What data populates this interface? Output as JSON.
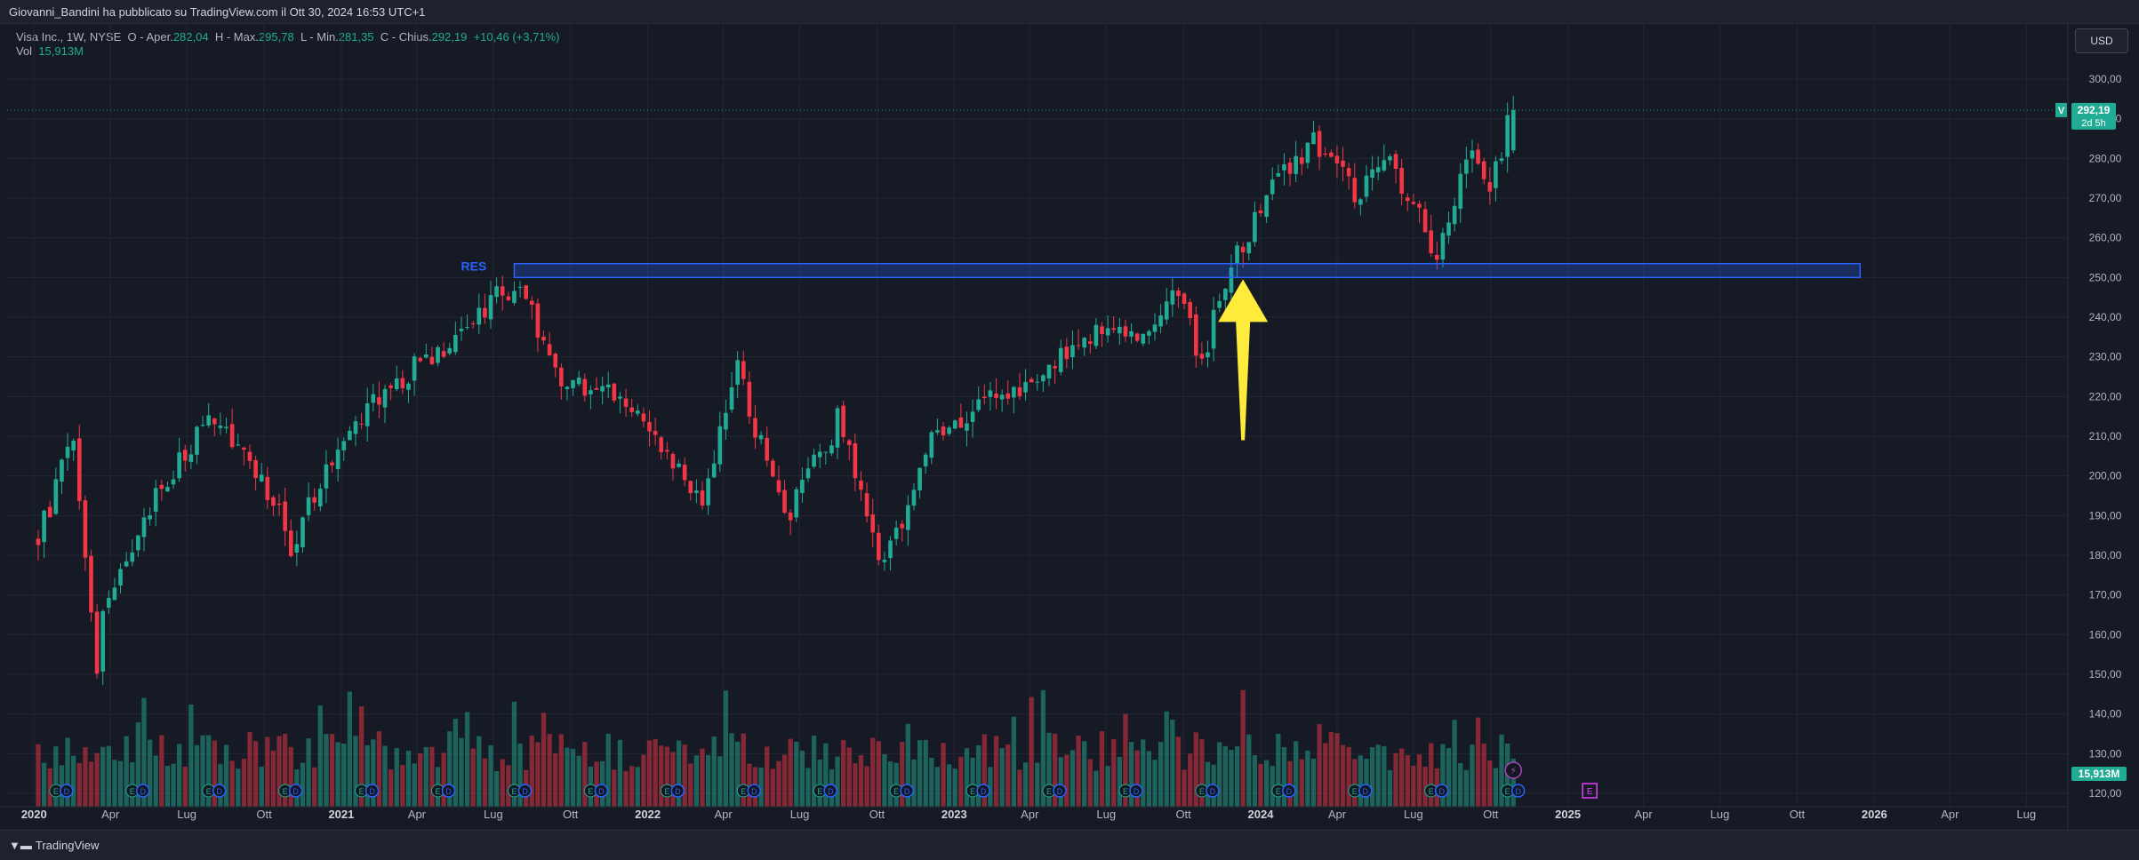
{
  "header": {
    "publisher_text": "Giovanni_Bandini ha pubblicato su TradingView.com il Ott 30, 2024 16:53 UTC+1"
  },
  "legend": {
    "symbol": "Visa Inc., 1W, NYSE",
    "open_label": "O - Aper.",
    "open_value": "282,04",
    "high_label": "H - Max.",
    "high_value": "295,78",
    "low_label": "L - Min.",
    "low_value": "281,35",
    "close_label": "C - Chius.",
    "close_value": "292,19",
    "change_value": "+10,46 (+3,71%)",
    "vol_label": "Vol",
    "vol_value": "15,913M"
  },
  "currency_button": "USD",
  "price_tag": {
    "symbol_letter": "V",
    "price": "292,19",
    "countdown": "2d 5h"
  },
  "volume_tag": "15,913M",
  "footer": {
    "logo_text": "TradingView"
  },
  "colors": {
    "up": "#22ab94",
    "down": "#f23645",
    "zone_border": "#2962ff",
    "arrow": "#ffeb3b",
    "label": "#2962ff",
    "earnings": "#2962ff"
  },
  "chart_data": {
    "type": "candlestick",
    "timeframe": "1W",
    "ylim": [
      115,
      310
    ],
    "y_ticks": [
      "120,00",
      "130,00",
      "140,00",
      "150,00",
      "160,00",
      "170,00",
      "180,00",
      "190,00",
      "200,00",
      "210,00",
      "220,00",
      "230,00",
      "240,00",
      "250,00",
      "260,00",
      "270,00",
      "280,00",
      "290,00",
      "300,00"
    ],
    "x_ticks": [
      "2020",
      "Apr",
      "Lug",
      "Ott",
      "2021",
      "Apr",
      "Lug",
      "Ott",
      "2022",
      "Apr",
      "Lug",
      "Ott",
      "2023",
      "Apr",
      "Lug",
      "Ott",
      "2024",
      "Apr",
      "Lug",
      "Ott",
      "2025",
      "Apr",
      "Lug",
      "Ott",
      "2026",
      "Apr",
      "Lug"
    ],
    "weekly_close_keypoints": [
      [
        "2020-01-06",
        184
      ],
      [
        "2020-02-17",
        210
      ],
      [
        "2020-03-16",
        150
      ],
      [
        "2020-03-23",
        168
      ],
      [
        "2020-05-25",
        195
      ],
      [
        "2020-08-03",
        215
      ],
      [
        "2020-09-14",
        205
      ],
      [
        "2020-11-02",
        183
      ],
      [
        "2021-01-04",
        212
      ],
      [
        "2021-04-26",
        232
      ],
      [
        "2021-07-26",
        249
      ],
      [
        "2021-09-20",
        225
      ],
      [
        "2021-12-20",
        217
      ],
      [
        "2022-03-07",
        195
      ],
      [
        "2022-04-18",
        227
      ],
      [
        "2022-06-13",
        188
      ],
      [
        "2022-08-15",
        214
      ],
      [
        "2022-10-10",
        176
      ],
      [
        "2022-12-05",
        210
      ],
      [
        "2023-03-13",
        222
      ],
      [
        "2023-05-29",
        235
      ],
      [
        "2023-08-14",
        237
      ],
      [
        "2023-09-25",
        245
      ],
      [
        "2023-10-23",
        230
      ],
      [
        "2023-12-04",
        255
      ],
      [
        "2024-01-29",
        277
      ],
      [
        "2024-03-04",
        284
      ],
      [
        "2024-04-22",
        272
      ],
      [
        "2024-06-03",
        278
      ],
      [
        "2024-07-29",
        256
      ],
      [
        "2024-09-09",
        281
      ],
      [
        "2024-09-30",
        274
      ],
      [
        "2024-10-28",
        292.19
      ]
    ],
    "last_candle": {
      "open": 282.04,
      "high": 295.78,
      "low": 281.35,
      "close": 292.19,
      "volume": "15,913M"
    },
    "resistance_zone": {
      "label": "RES",
      "low": 250,
      "high": 253.5,
      "start": "2021-07-26",
      "end": "2025-12-15"
    },
    "earnings_markers": "quarterly E markers on volume pane; next E at 2025-01-27",
    "breakout_arrow_at": "2023-12-11"
  }
}
